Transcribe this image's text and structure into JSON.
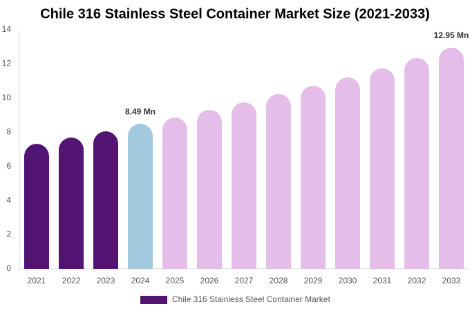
{
  "chart_data": {
    "type": "bar",
    "title": "Chile 316 Stainless Steel Container Market Size (2021-2033)",
    "categories": [
      "2021",
      "2022",
      "2023",
      "2024",
      "2025",
      "2026",
      "2027",
      "2028",
      "2029",
      "2030",
      "2031",
      "2032",
      "2033"
    ],
    "series": [
      {
        "name": "Chile 316 Stainless Steel Container Market",
        "color": "#521472",
        "values": [
          7.32,
          7.69,
          8.05,
          8.49,
          8.86,
          9.31,
          9.75,
          10.24,
          10.72,
          11.21,
          11.74,
          12.34,
          12.95
        ],
        "colors": [
          "#521472",
          "#521472",
          "#521472",
          "#a3c9de",
          "#e5bde9",
          "#e5bde9",
          "#e5bde9",
          "#e5bde9",
          "#e5bde9",
          "#e5bde9",
          "#e5bde9",
          "#e5bde9",
          "#e5bde9"
        ],
        "value_labels": [
          null,
          null,
          null,
          "8.49 Mn",
          null,
          null,
          null,
          null,
          null,
          null,
          null,
          null,
          "12.95 Mn"
        ]
      }
    ],
    "ylim": [
      0,
      14
    ],
    "yticks": [
      0,
      2,
      4,
      6,
      8,
      10,
      12,
      14
    ],
    "grid": false
  }
}
